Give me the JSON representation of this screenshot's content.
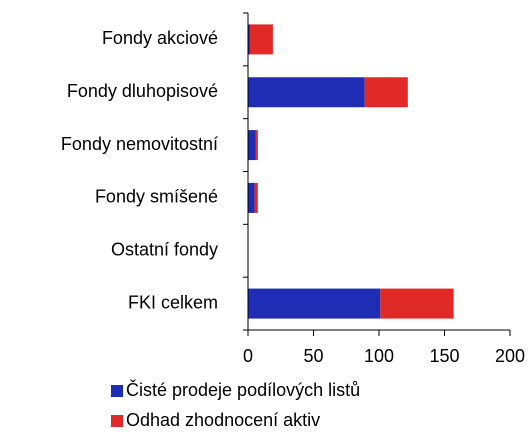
{
  "chart_data": {
    "type": "stacked-barh",
    "categories": [
      "Fondy akciové",
      "Fondy dluhopisové",
      "Fondy nemovitostní",
      "Fondy smíšené",
      "Ostatní fondy",
      "FKI celkem"
    ],
    "series": [
      {
        "name": "Čisté prodeje podílových listů",
        "color": "#1f2db4",
        "values": [
          1.5,
          89,
          6,
          5,
          0,
          101
        ]
      },
      {
        "name": "Odhad zhodnocení aktiv",
        "color": "#e02a28",
        "values": [
          17.5,
          33,
          1.5,
          2.5,
          0,
          56
        ]
      }
    ],
    "xlim": [
      0,
      200
    ],
    "xticks": [
      0,
      50,
      100,
      150,
      200
    ],
    "legend": "bottom"
  }
}
